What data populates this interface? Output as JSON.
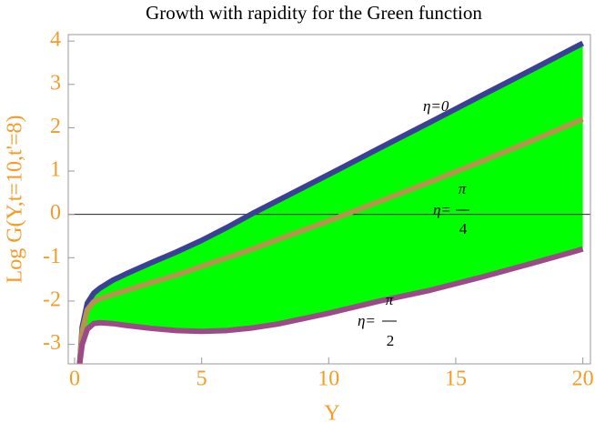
{
  "chart_data": {
    "type": "line",
    "title": "Growth with rapidity for the Green function",
    "x_label": "Y",
    "y_label": "Log G(Y,t=10,t'=8)",
    "x": [
      0.2,
      0.3,
      0.5,
      0.75,
      1,
      1.5,
      2,
      3,
      4,
      5,
      6,
      7,
      8,
      10,
      12,
      14,
      16,
      18,
      20
    ],
    "series": [
      {
        "color": "#3c3f98",
        "values": [
          -3.45,
          -2.6,
          -2.05,
          -1.82,
          -1.7,
          -1.52,
          -1.38,
          -1.12,
          -0.87,
          -0.6,
          -0.3,
          0.02,
          0.32,
          0.92,
          1.53,
          2.13,
          2.74,
          3.34,
          3.95
        ]
      },
      {
        "color": "#b5944e",
        "values": [
          -3.45,
          -2.7,
          -2.2,
          -2.02,
          -1.95,
          -1.85,
          -1.76,
          -1.58,
          -1.4,
          -1.2,
          -1.0,
          -0.8,
          -0.58,
          -0.15,
          0.3,
          0.75,
          1.22,
          1.7,
          2.2
        ]
      },
      {
        "color": "#9c4a88",
        "values": [
          -3.45,
          -3.0,
          -2.65,
          -2.52,
          -2.5,
          -2.52,
          -2.56,
          -2.63,
          -2.68,
          -2.7,
          -2.68,
          -2.62,
          -2.53,
          -2.28,
          -2.0,
          -1.75,
          -1.45,
          -1.13,
          -0.8
        ]
      }
    ],
    "fill_color": "#00ff00",
    "xlim": [
      -0.25,
      20.3
    ],
    "ylim": [
      -3.45,
      4.15
    ],
    "xticks": [
      0,
      5,
      10,
      15,
      20
    ],
    "yticks": [
      -3,
      -2,
      -1,
      0,
      1,
      2,
      3,
      4
    ],
    "annotations": [
      {
        "prefix": "η=0"
      },
      {
        "prefix": "η=",
        "numerator": "π",
        "denominator": "4"
      },
      {
        "prefix": "η=",
        "numerator": "π",
        "denominator": "2"
      }
    ]
  }
}
